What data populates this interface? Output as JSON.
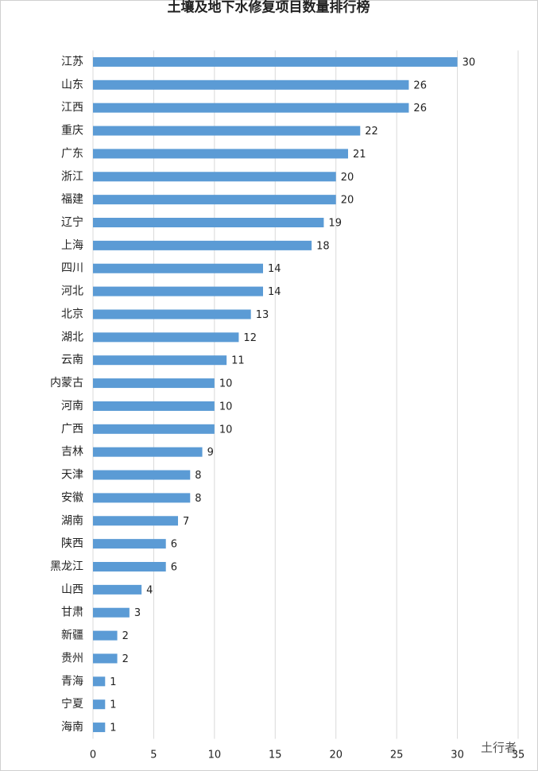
{
  "chart_data": {
    "type": "bar",
    "orientation": "horizontal",
    "title": "土壤及地下水修复项目数量排行榜",
    "categories": [
      "江苏",
      "山东",
      "江西",
      "重庆",
      "广东",
      "浙江",
      "福建",
      "辽宁",
      "上海",
      "四川",
      "河北",
      "北京",
      "湖北",
      "云南",
      "内蒙古",
      "河南",
      "广西",
      "吉林",
      "天津",
      "安徽",
      "湖南",
      "陕西",
      "黑龙江",
      "山西",
      "甘肃",
      "新疆",
      "贵州",
      "青海",
      "宁夏",
      "海南"
    ],
    "values": [
      30,
      26,
      26,
      22,
      21,
      20,
      20,
      19,
      18,
      14,
      14,
      13,
      12,
      11,
      10,
      10,
      10,
      9,
      8,
      8,
      7,
      6,
      6,
      4,
      3,
      2,
      2,
      1,
      1,
      1
    ],
    "color": "#5b9bd5",
    "xlim": [
      0,
      35
    ],
    "xticks": [
      0,
      5,
      10,
      15,
      20,
      25,
      30,
      35
    ],
    "grid": true,
    "watermark": "土行者"
  }
}
